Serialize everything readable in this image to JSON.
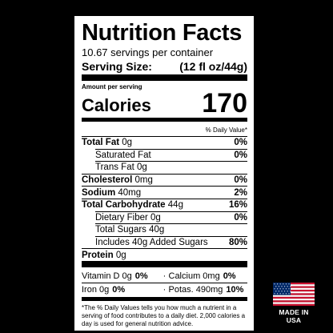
{
  "label": {
    "title": "Nutrition Facts",
    "servings": "10.67 servings per container",
    "serving_size_label": "Serving Size:",
    "serving_size_value": "(12 fl oz/44g)",
    "amount_per_serving": "Amount per serving",
    "calories_label": "Calories",
    "calories_value": "170",
    "daily_value_header": "% Daily Value*",
    "rows": [
      {
        "name": "Total Fat",
        "amount": "0g",
        "dv": "0%"
      },
      {
        "name": "Saturated Fat",
        "amount": "",
        "dv": "0%"
      },
      {
        "name": "Trans Fat 0g",
        "amount": "",
        "dv": ""
      },
      {
        "name": "Cholesterol",
        "amount": "0mg",
        "dv": "0%"
      },
      {
        "name": "Sodium",
        "amount": "40mg",
        "dv": "2%"
      },
      {
        "name": "Total Carbohydrate",
        "amount": "44g",
        "dv": "16%"
      },
      {
        "name": "Dietary Fiber 0g",
        "amount": "",
        "dv": "0%"
      },
      {
        "name": "Total Sugars 40g",
        "amount": "",
        "dv": ""
      },
      {
        "name": "Includes 40g Added Sugars",
        "amount": "",
        "dv": "80%"
      },
      {
        "name": "Protein",
        "amount": "0g",
        "dv": ""
      }
    ],
    "vitamins": [
      {
        "name": "Vitamin D 0g",
        "dv": "0%"
      },
      {
        "name": "Calcium 0mg",
        "dv": "0%"
      },
      {
        "name": "Iron 0g",
        "dv": "0%"
      },
      {
        "name": "Potas. 490mg",
        "dv": "10%"
      }
    ],
    "footnote": "*The % Daily Values tells you how much a nutrient in a serving of food contributes to a daily diet. 2,000 calories a day is used for general nutrition advice."
  },
  "badge": {
    "text": "MADE IN USA",
    "flag_colors": {
      "red": "#c8102e",
      "white": "#ffffff",
      "blue": "#002868"
    }
  }
}
